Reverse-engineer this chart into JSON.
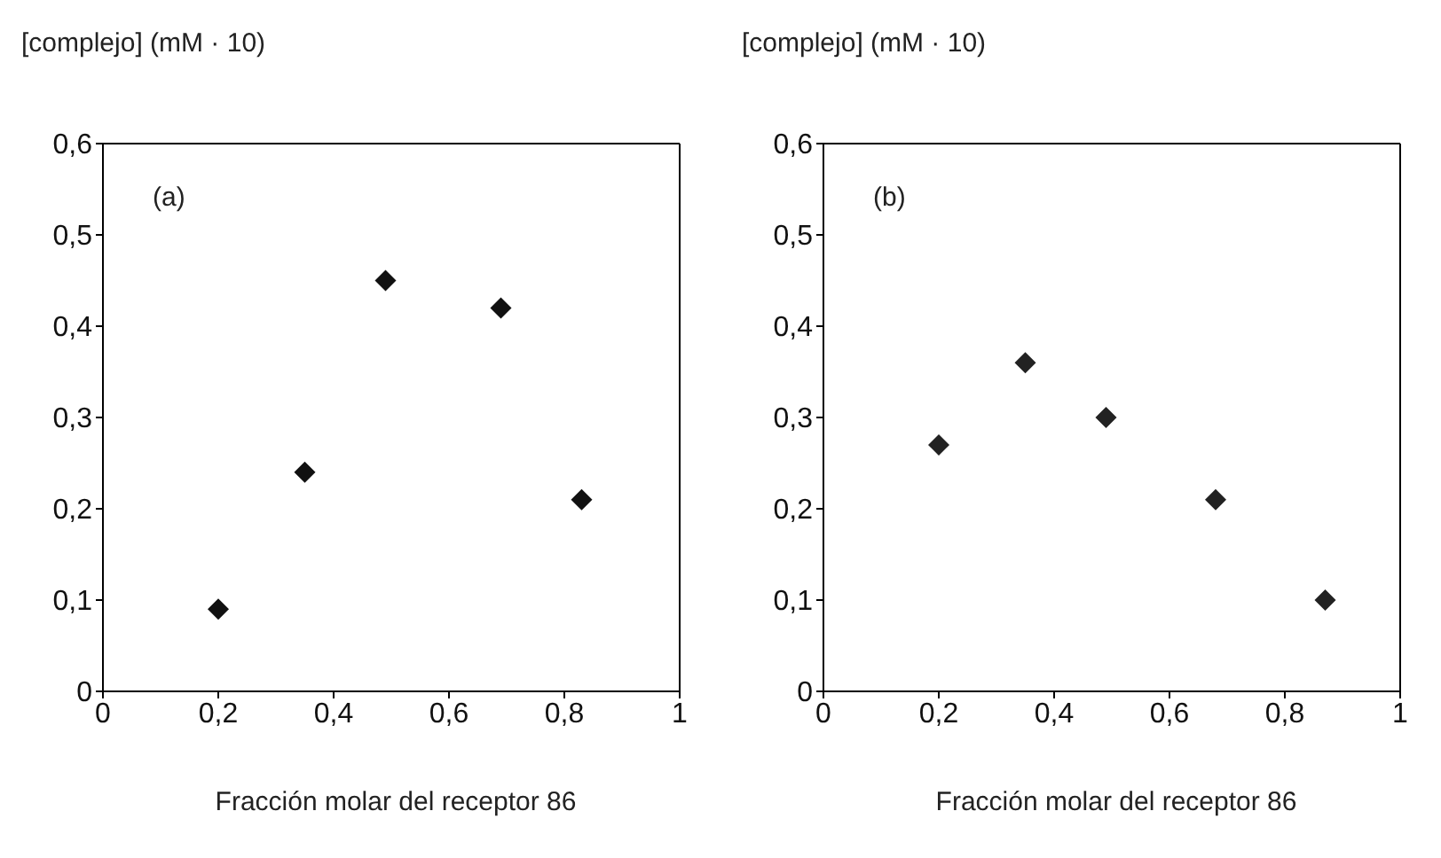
{
  "chart_data": [
    {
      "type": "scatter",
      "ylabel": "[complejo] (mM · 10)",
      "xlabel": "Fracción molar del receptor 86",
      "annotations": [
        "(a)"
      ],
      "x": [
        0.2,
        0.35,
        0.49,
        0.69,
        0.83
      ],
      "values": [
        0.09,
        0.24,
        0.45,
        0.42,
        0.21
      ],
      "color": "#111111",
      "marker": "diamond",
      "xlim": [
        0,
        1
      ],
      "xticks": [
        {
          "value": 0,
          "label": "0"
        },
        {
          "value": 0.2,
          "label": "0,2"
        },
        {
          "value": 0.4,
          "label": "0,4"
        },
        {
          "value": 0.6,
          "label": "0,6"
        },
        {
          "value": 0.8,
          "label": "0,8"
        },
        {
          "value": 1,
          "label": "1"
        }
      ],
      "ylim": [
        0,
        0.6
      ],
      "yticks": [
        {
          "value": 0,
          "label": "0"
        },
        {
          "value": 0.1,
          "label": "0,1"
        },
        {
          "value": 0.2,
          "label": "0,2"
        },
        {
          "value": 0.3,
          "label": "0,3"
        },
        {
          "value": 0.4,
          "label": "0,4"
        },
        {
          "value": 0.5,
          "label": "0,5"
        },
        {
          "value": 0.6,
          "label": "0,6"
        }
      ],
      "grid": false
    },
    {
      "type": "scatter",
      "ylabel": "[complejo] (mM · 10)",
      "xlabel": "Fracción molar del receptor 86",
      "annotations": [
        "(b)"
      ],
      "x": [
        0.2,
        0.35,
        0.49,
        0.68,
        0.87
      ],
      "values": [
        0.27,
        0.36,
        0.3,
        0.21,
        0.1
      ],
      "color": "#222222",
      "marker": "diamond",
      "xlim": [
        0,
        1
      ],
      "xticks": [
        {
          "value": 0,
          "label": "0"
        },
        {
          "value": 0.2,
          "label": "0,2"
        },
        {
          "value": 0.4,
          "label": "0,4"
        },
        {
          "value": 0.6,
          "label": "0,6"
        },
        {
          "value": 0.8,
          "label": "0,8"
        },
        {
          "value": 1,
          "label": "1"
        }
      ],
      "ylim": [
        0,
        0.6
      ],
      "yticks": [
        {
          "value": 0,
          "label": "0"
        },
        {
          "value": 0.1,
          "label": "0,1"
        },
        {
          "value": 0.2,
          "label": "0,2"
        },
        {
          "value": 0.3,
          "label": "0,3"
        },
        {
          "value": 0.4,
          "label": "0,4"
        },
        {
          "value": 0.5,
          "label": "0,5"
        },
        {
          "value": 0.6,
          "label": "0,6"
        }
      ],
      "grid": false
    }
  ]
}
